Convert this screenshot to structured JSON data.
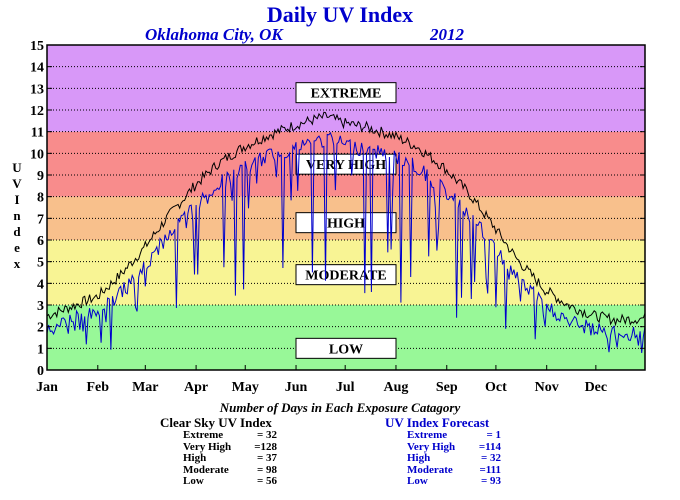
{
  "header": {
    "title": "Daily UV Index",
    "location": "Oklahoma City, OK",
    "year": "2012"
  },
  "colors": {
    "title": "#0000cc",
    "extreme": "#d898f8",
    "very_high": "#f88c8c",
    "high": "#f8c08c",
    "moderate": "#f8f494",
    "low": "#98f898",
    "clear_sky_line": "#000000",
    "forecast_line": "#0000cc"
  },
  "chart_data": {
    "type": "line",
    "title": "Daily UV Index",
    "ylabel": "U V I n d e x",
    "ylim": [
      0,
      15
    ],
    "yticks": [
      0,
      1,
      2,
      3,
      4,
      5,
      6,
      7,
      8,
      9,
      10,
      11,
      12,
      13,
      14,
      15
    ],
    "x_tick_labels": [
      "Jan",
      "Feb",
      "Mar",
      "Apr",
      "May",
      "Jun",
      "Jul",
      "Aug",
      "Sep",
      "Oct",
      "Nov",
      "Dec"
    ],
    "grid": true,
    "bands": [
      {
        "label": "LOW",
        "from": 0,
        "to": 3,
        "color": "#98f898"
      },
      {
        "label": "MODERATE",
        "from": 3,
        "to": 6,
        "color": "#f8f494"
      },
      {
        "label": "HIGH",
        "from": 6,
        "to": 8,
        "color": "#f8c08c"
      },
      {
        "label": "VERY HIGH",
        "from": 8,
        "to": 11,
        "color": "#f88c8c"
      },
      {
        "label": "EXTREME",
        "from": 11,
        "to": 15,
        "color": "#d898f8"
      }
    ],
    "series": [
      {
        "name": "Clear Sky UV Index",
        "color": "#000000",
        "x_days": [
          1,
          15,
          32,
          46,
          60,
          74,
          91,
          105,
          121,
          135,
          152,
          166,
          172,
          182,
          196,
          213,
          227,
          244,
          258,
          274,
          288,
          305,
          319,
          335,
          349,
          366
        ],
        "values": [
          2.5,
          2.9,
          3.4,
          4.4,
          5.6,
          7.0,
          8.5,
          9.5,
          10.3,
          10.8,
          11.3,
          11.6,
          11.7,
          11.4,
          11.2,
          10.8,
          10.3,
          9.3,
          8.2,
          6.6,
          5.1,
          3.7,
          3.0,
          2.5,
          2.3,
          2.4
        ]
      },
      {
        "name": "UV Index Forecast",
        "color": "#0000cc",
        "x_days": [
          1,
          15,
          32,
          46,
          60,
          74,
          91,
          105,
          121,
          135,
          152,
          166,
          172,
          182,
          196,
          213,
          227,
          244,
          258,
          274,
          288,
          305,
          319,
          335,
          349,
          366
        ],
        "values": [
          2.3,
          2.7,
          3.0,
          3.9,
          5.0,
          6.5,
          7.9,
          8.9,
          9.6,
          10.2,
          10.6,
          10.9,
          11.0,
          10.8,
          10.5,
          10.2,
          9.7,
          8.6,
          7.6,
          6.0,
          4.6,
          3.3,
          2.6,
          2.2,
          2.0,
          2.1
        ]
      }
    ]
  },
  "footer": {
    "title": "Number of Days in Each Exposure Catagory",
    "clear_sky": {
      "heading": "Clear Sky UV Index",
      "rows": [
        {
          "label": "Extreme",
          "value": "= 32"
        },
        {
          "label": "Very High",
          "value": "=128"
        },
        {
          "label": "High",
          "value": "= 37"
        },
        {
          "label": "Moderate",
          "value": "= 98"
        },
        {
          "label": "Low",
          "value": "= 56"
        }
      ]
    },
    "forecast": {
      "heading": "UV Index Forecast",
      "rows": [
        {
          "label": "Extreme",
          "value": "= 1"
        },
        {
          "label": "Very High",
          "value": "=114"
        },
        {
          "label": "High",
          "value": "= 32"
        },
        {
          "label": "Moderate",
          "value": "=111"
        },
        {
          "label": "Low",
          "value": "= 93"
        }
      ]
    }
  }
}
